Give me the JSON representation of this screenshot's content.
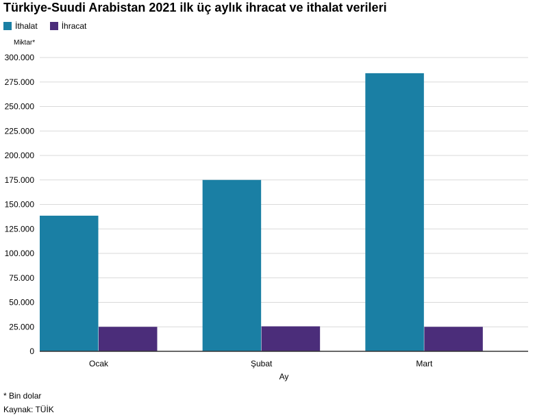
{
  "chart_data": {
    "type": "bar",
    "title": "Türkiye-Suudi Arabistan 2021 ilk üç aylık ihracat ve ithalat verileri",
    "xlabel": "Ay",
    "ylabel": "Miktar*",
    "categories": [
      "Ocak",
      "Şubat",
      "Mart"
    ],
    "series": [
      {
        "name": "İthalat",
        "color": "#1a7fa4",
        "values": [
          138500,
          175000,
          284000
        ]
      },
      {
        "name": "İhracat",
        "color": "#4b2d7a",
        "values": [
          25000,
          25500,
          25000
        ]
      }
    ],
    "ylim": [
      0,
      300000
    ],
    "yticks": [
      0,
      25000,
      50000,
      75000,
      100000,
      125000,
      150000,
      175000,
      200000,
      225000,
      250000,
      275000,
      300000
    ],
    "ytick_labels": [
      "0",
      "25.000",
      "50.000",
      "75.000",
      "100.000",
      "125.000",
      "150.000",
      "175.000",
      "200.000",
      "225.000",
      "250.000",
      "275.000",
      "300.000"
    ],
    "grid": true,
    "legend_position": "top-left"
  },
  "footnote": "* Bin dolar",
  "source": "Kaynak: TÜİK"
}
